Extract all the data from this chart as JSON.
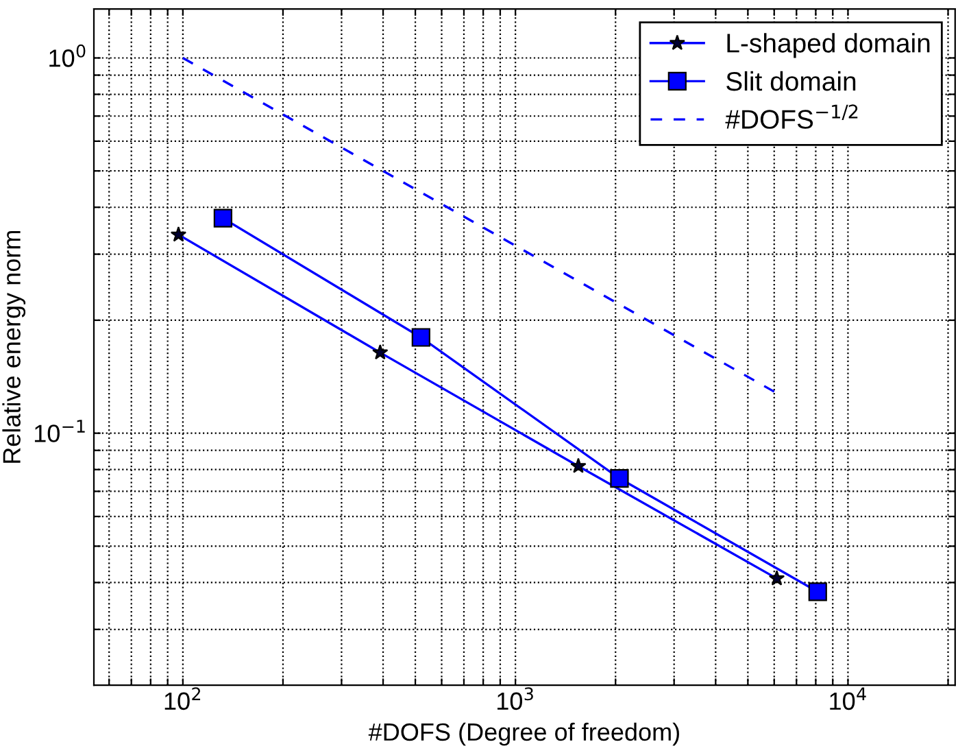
{
  "chart_data": {
    "type": "line",
    "xlabel": "#DOFS (Degree of freedom)",
    "ylabel": "Relative energy norm",
    "log": "xy",
    "grid": true,
    "legend": "top right",
    "xlim": [
      54,
      21000
    ],
    "xticks": [
      {
        "value": 60,
        "label": null
      },
      {
        "value": 70,
        "label": null
      },
      {
        "value": 80,
        "label": null
      },
      {
        "value": 90,
        "label": null
      },
      {
        "value": 100,
        "label": "10$^{2}$"
      },
      {
        "value": 200,
        "label": null
      },
      {
        "value": 300,
        "label": null
      },
      {
        "value": 400,
        "label": null
      },
      {
        "value": 500,
        "label": null
      },
      {
        "value": 600,
        "label": null
      },
      {
        "value": 700,
        "label": null
      },
      {
        "value": 800,
        "label": null
      },
      {
        "value": 900,
        "label": null
      },
      {
        "value": 1000,
        "label": "10$^{3}$"
      },
      {
        "value": 2000,
        "label": null
      },
      {
        "value": 3000,
        "label": null
      },
      {
        "value": 4000,
        "label": null
      },
      {
        "value": 5000,
        "label": null
      },
      {
        "value": 6000,
        "label": null
      },
      {
        "value": 7000,
        "label": null
      },
      {
        "value": 8000,
        "label": null
      },
      {
        "value": 9000,
        "label": null
      },
      {
        "value": 10000,
        "label": "10$^{4}$"
      },
      {
        "value": 20000,
        "label": null
      }
    ],
    "ylim": [
      0.0213,
      1.35
    ],
    "yticks": [
      {
        "value": 0.03,
        "label": null
      },
      {
        "value": 0.04,
        "label": null
      },
      {
        "value": 0.05,
        "label": null
      },
      {
        "value": 0.06,
        "label": null
      },
      {
        "value": 0.07,
        "label": null
      },
      {
        "value": 0.08,
        "label": null
      },
      {
        "value": 0.09,
        "label": null
      },
      {
        "value": 0.1,
        "label": "10$^{−1}$"
      },
      {
        "value": 0.2,
        "label": null
      },
      {
        "value": 0.3,
        "label": null
      },
      {
        "value": 0.4,
        "label": null
      },
      {
        "value": 0.5,
        "label": null
      },
      {
        "value": 0.6,
        "label": null
      },
      {
        "value": 0.7,
        "label": null
      },
      {
        "value": 0.8,
        "label": null
      },
      {
        "value": 0.9,
        "label": null
      },
      {
        "value": 1,
        "label": "10$^{0}$"
      }
    ],
    "series": [
      {
        "name": "L-shaped domain",
        "color": "#0000ff",
        "marker": "star",
        "line_style": "solid",
        "x": [
          97,
          392,
          1546,
          6109
        ],
        "values": [
          0.338,
          0.164,
          0.0817,
          0.041
        ]
      },
      {
        "name": "Slit domain",
        "color": "#0000ff",
        "marker": "square",
        "line_style": "solid",
        "x": [
          132,
          520,
          2055,
          8110
        ],
        "values": [
          0.374,
          0.18,
          0.0758,
          0.0378
        ]
      },
      {
        "name": "#DOFS$^{−1/2}$",
        "color": "#0000ff",
        "marker": "none",
        "line_style": "dashed",
        "x": [
          100,
          6000
        ],
        "values": [
          1.0,
          0.129
        ]
      }
    ]
  }
}
